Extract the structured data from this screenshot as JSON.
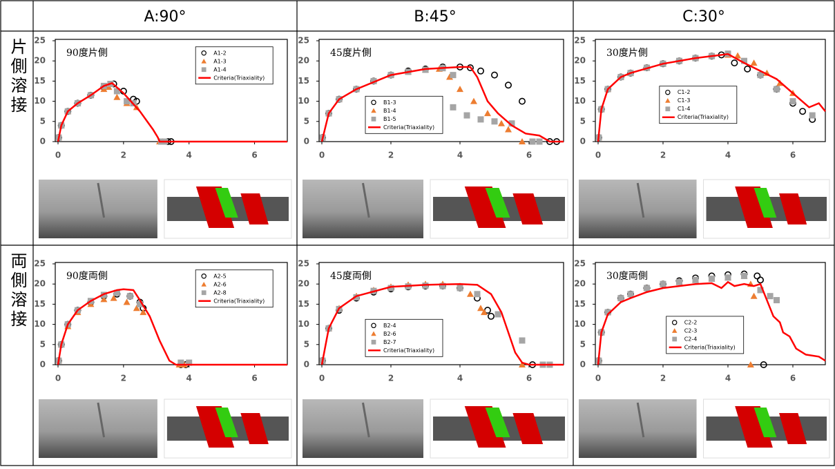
{
  "table": {
    "header": [
      "A:90°",
      "B:45°",
      "C:30°"
    ],
    "row_labels": [
      "片側溶接",
      "両側溶接"
    ]
  },
  "chart_data": [
    {
      "type": "scatter",
      "title": "90度片側",
      "xlim": [
        0,
        7
      ],
      "ylim": [
        0,
        25
      ],
      "xticks": [
        0,
        2,
        4,
        6
      ],
      "yticks": [
        0,
        5,
        10,
        15,
        20,
        25
      ],
      "legend": "upper right",
      "series": [
        {
          "name": "A1-2",
          "color": "#000000",
          "marker": "circle",
          "x": [
            0.02,
            0.1,
            0.3,
            0.6,
            1.0,
            1.4,
            1.7,
            2.0,
            2.3,
            2.4,
            3.35,
            3.45
          ],
          "values": [
            1,
            4,
            7.5,
            9.5,
            11.5,
            13.5,
            14.3,
            12.5,
            10.5,
            10,
            0,
            0
          ]
        },
        {
          "name": "A1-3",
          "color": "#ed7d31",
          "marker": "triangle",
          "x": [
            0.02,
            0.1,
            0.3,
            0.6,
            1.0,
            1.4,
            1.55,
            1.8,
            2.1,
            2.4,
            3.1,
            3.2
          ],
          "values": [
            1,
            4,
            7.5,
            9.5,
            11.5,
            13,
            13.5,
            11,
            9.5,
            8.5,
            0,
            0
          ]
        },
        {
          "name": "A1-4",
          "color": "#a5a5a5",
          "marker": "square",
          "x": [
            0.02,
            0.1,
            0.3,
            0.6,
            1.0,
            1.4,
            1.6,
            1.8,
            2.1,
            2.3,
            3.15,
            3.25
          ],
          "values": [
            1,
            4,
            7.5,
            9.5,
            11.5,
            13.8,
            14.3,
            12.5,
            10,
            9.5,
            0,
            0
          ]
        },
        {
          "name": "Criteria(Triaxiality)",
          "color": "#ff0000",
          "marker": "line",
          "x": [
            0,
            0.1,
            0.3,
            0.6,
            1.0,
            1.4,
            1.65,
            2.0,
            2.5,
            2.9,
            3.05,
            3.1,
            7
          ],
          "values": [
            0,
            4,
            7.5,
            9.5,
            11.5,
            13.8,
            14.5,
            12,
            7.5,
            3,
            1,
            0,
            0
          ]
        }
      ]
    },
    {
      "type": "scatter",
      "title": "45度片側",
      "xlim": [
        0,
        7
      ],
      "ylim": [
        0,
        25
      ],
      "xticks": [
        0,
        2,
        4,
        6
      ],
      "yticks": [
        0,
        5,
        10,
        15,
        20,
        25
      ],
      "legend": "lower left",
      "series": [
        {
          "name": "B1-3",
          "color": "#000000",
          "marker": "circle",
          "x": [
            0.02,
            0.2,
            0.5,
            1,
            1.5,
            2,
            2.5,
            3,
            3.5,
            4,
            4.3,
            4.6,
            5,
            5.4,
            5.8,
            6.6,
            6.8
          ],
          "values": [
            1,
            7,
            10.5,
            13,
            15,
            16.5,
            17.5,
            18,
            18.5,
            18.5,
            18.3,
            17.5,
            16.5,
            14,
            10,
            0,
            0
          ]
        },
        {
          "name": "B1-4",
          "color": "#ed7d31",
          "marker": "triangle",
          "x": [
            0.02,
            0.2,
            0.5,
            1,
            1.5,
            2,
            2.5,
            3,
            3.4,
            3.7,
            4,
            4.4,
            4.8,
            5.2,
            5.4,
            5.8
          ],
          "values": [
            1,
            7,
            10.5,
            13,
            15,
            16.5,
            17.3,
            17.8,
            18,
            16,
            13,
            10,
            7,
            4.5,
            3,
            0
          ]
        },
        {
          "name": "B1-5",
          "color": "#a5a5a5",
          "marker": "square",
          "x": [
            0.02,
            0.2,
            0.5,
            1,
            1.5,
            2,
            2.5,
            3,
            3.5,
            3.8,
            3.8,
            4.2,
            4.6,
            5,
            5.5,
            6.1,
            6.3
          ],
          "values": [
            1,
            7,
            10.5,
            13,
            15,
            16.5,
            17.3,
            17.8,
            18.2,
            16.5,
            8.5,
            6.5,
            5.5,
            5,
            4.5,
            0,
            0
          ]
        },
        {
          "name": "Criteria(Triaxiality)",
          "color": "#ff0000",
          "marker": "line",
          "x": [
            0,
            0.2,
            0.5,
            1,
            2,
            3,
            4,
            4.3,
            4.5,
            4.8,
            5.1,
            5.5,
            5.9,
            6.3,
            6.6,
            7
          ],
          "values": [
            0,
            7,
            10.5,
            13,
            16.5,
            18,
            18.5,
            18.5,
            16,
            10,
            7,
            4,
            2,
            1.5,
            0,
            0
          ]
        }
      ]
    },
    {
      "type": "scatter",
      "title": "30度片側",
      "xlim": [
        0,
        7
      ],
      "ylim": [
        0,
        25
      ],
      "xticks": [
        0,
        2,
        4,
        6
      ],
      "yticks": [
        0,
        5,
        10,
        15,
        20,
        25
      ],
      "legend": "center left",
      "series": [
        {
          "name": "C1-2",
          "color": "#000000",
          "marker": "circle",
          "x": [
            0.02,
            0.1,
            0.3,
            0.7,
            1,
            1.5,
            2,
            2.5,
            3,
            3.5,
            3.8,
            4.2,
            4.6,
            5,
            5.5,
            6,
            6.3,
            6.6
          ],
          "values": [
            1,
            8,
            13,
            16,
            17,
            18.3,
            19.3,
            20,
            20.7,
            21.2,
            21.5,
            19.5,
            18,
            16.5,
            13,
            9.5,
            7.5,
            5.5
          ]
        },
        {
          "name": "C1-3",
          "color": "#ed7d31",
          "marker": "triangle",
          "x": [
            0.02,
            0.1,
            0.3,
            0.7,
            1,
            1.5,
            2,
            2.5,
            3,
            3.5,
            4,
            4.3,
            4.8,
            5.2,
            5.6,
            6
          ],
          "values": [
            1,
            8,
            13,
            16,
            17,
            18.3,
            19.3,
            20,
            20.7,
            21.2,
            21.5,
            21.3,
            19.5,
            17,
            14.5,
            12
          ]
        },
        {
          "name": "C1-4",
          "color": "#a5a5a5",
          "marker": "square",
          "x": [
            0.02,
            0.1,
            0.3,
            0.7,
            1,
            1.5,
            2,
            2.5,
            3,
            3.5,
            4,
            4.5,
            5,
            5.5,
            6,
            6.6
          ],
          "values": [
            1,
            8,
            13,
            16,
            17,
            18.3,
            19.3,
            20,
            20.7,
            21.2,
            21.8,
            20,
            16.5,
            13,
            10,
            6.5
          ]
        },
        {
          "name": "Criteria(Triaxiality)",
          "color": "#ff0000",
          "marker": "line",
          "x": [
            0,
            0.1,
            0.3,
            0.7,
            1,
            2,
            3,
            4,
            4.5,
            5,
            5.5,
            6,
            6.5,
            6.8,
            7
          ],
          "values": [
            0,
            8,
            13,
            16,
            17,
            19.3,
            20.7,
            21.7,
            19.5,
            17.5,
            15.5,
            12,
            8.5,
            9.5,
            7.5
          ]
        }
      ]
    },
    {
      "type": "scatter",
      "title": "90度両側",
      "xlim": [
        0,
        7
      ],
      "ylim": [
        0,
        25
      ],
      "xticks": [
        0,
        2,
        4,
        6
      ],
      "yticks": [
        0,
        5,
        10,
        15,
        20,
        25
      ],
      "legend": "upper right",
      "series": [
        {
          "name": "A2-5",
          "color": "#000000",
          "marker": "circle",
          "x": [
            0.02,
            0.1,
            0.3,
            0.6,
            1,
            1.4,
            1.8,
            2.2,
            2.5,
            2.6,
            3.75,
            3.9
          ],
          "values": [
            1,
            5,
            10,
            13.5,
            15.5,
            17,
            17.5,
            17,
            15.5,
            14,
            0,
            0
          ]
        },
        {
          "name": "A2-6",
          "color": "#ed7d31",
          "marker": "triangle",
          "x": [
            0.02,
            0.1,
            0.3,
            0.6,
            1,
            1.4,
            1.7,
            2.1,
            2.4,
            2.6,
            3.7,
            3.85
          ],
          "values": [
            1,
            5,
            9.5,
            13,
            15,
            16.2,
            16.5,
            15.5,
            14,
            13,
            0,
            0
          ]
        },
        {
          "name": "A2-8",
          "color": "#a5a5a5",
          "marker": "square",
          "x": [
            0.02,
            0.1,
            0.3,
            0.6,
            1,
            1.4,
            1.8,
            2.2,
            2.5,
            3.75,
            4.0
          ],
          "values": [
            1,
            5,
            10,
            13.5,
            15.8,
            17.3,
            17.8,
            17,
            15,
            0.5,
            0.5
          ]
        },
        {
          "name": "Criteria(Triaxiality)",
          "color": "#ff0000",
          "marker": "line",
          "x": [
            0,
            0.1,
            0.3,
            0.6,
            1,
            1.4,
            1.8,
            2.0,
            2.3,
            2.5,
            2.8,
            3.1,
            3.4,
            3.6,
            7
          ],
          "values": [
            0,
            5,
            10,
            13.5,
            15.8,
            17.5,
            18.5,
            18.7,
            18.5,
            16,
            12,
            6,
            1,
            0,
            0
          ]
        }
      ]
    },
    {
      "type": "scatter",
      "title": "45度両側",
      "xlim": [
        0,
        7
      ],
      "ylim": [
        0,
        25
      ],
      "xticks": [
        0,
        2,
        4,
        6
      ],
      "yticks": [
        0,
        5,
        10,
        15,
        20,
        25
      ],
      "legend": "lower left",
      "series": [
        {
          "name": "B2-4",
          "color": "#000000",
          "marker": "circle",
          "x": [
            0.02,
            0.2,
            0.5,
            1,
            1.5,
            2,
            2.5,
            3,
            3.5,
            4,
            4.5,
            4.8,
            4.9,
            6.1
          ],
          "values": [
            1,
            9,
            13.5,
            16.5,
            18,
            18.8,
            19.3,
            19.5,
            19.5,
            19,
            16.5,
            13.5,
            12,
            0
          ]
        },
        {
          "name": "B2-6",
          "color": "#ed7d31",
          "marker": "triangle",
          "x": [
            0.02,
            0.2,
            0.5,
            1,
            1.5,
            2,
            2.5,
            3,
            3.5,
            4,
            4.3,
            4.6,
            4.7,
            5.8
          ],
          "values": [
            1,
            9,
            14,
            17,
            18.5,
            19.3,
            19.8,
            20,
            20,
            19.5,
            17.5,
            14,
            13,
            0
          ]
        },
        {
          "name": "B2-7",
          "color": "#a5a5a5",
          "marker": "square",
          "x": [
            0.02,
            0.2,
            0.5,
            1,
            1.5,
            2,
            2.5,
            3,
            3.5,
            4,
            4.5,
            5.1,
            5.8,
            6.4,
            6.6
          ],
          "values": [
            1,
            9,
            13.8,
            16.7,
            18.3,
            19,
            19.4,
            19.6,
            19.5,
            19,
            17.5,
            12.5,
            6,
            0,
            0
          ]
        },
        {
          "name": "Criteria(Triaxiality)",
          "color": "#ff0000",
          "marker": "line",
          "x": [
            0,
            0.2,
            0.5,
            1,
            2,
            3,
            4,
            4.5,
            4.9,
            5.2,
            5.4,
            5.6,
            5.8,
            6,
            7
          ],
          "values": [
            0,
            9,
            14,
            17,
            19.3,
            19.8,
            20,
            19.8,
            17.5,
            13,
            8,
            3,
            0.5,
            0,
            0
          ]
        }
      ]
    },
    {
      "type": "scatter",
      "title": "30度両側",
      "xlim": [
        0,
        7
      ],
      "ylim": [
        0,
        25
      ],
      "xticks": [
        0,
        2,
        4,
        6
      ],
      "yticks": [
        0,
        5,
        10,
        15,
        20,
        25
      ],
      "legend": "lower center",
      "series": [
        {
          "name": "C2-2",
          "color": "#000000",
          "marker": "circle",
          "x": [
            0.02,
            0.1,
            0.3,
            0.7,
            1,
            1.5,
            2,
            2.5,
            3,
            3.5,
            4,
            4.5,
            4.9,
            5.0,
            5.1
          ],
          "values": [
            1,
            8,
            13,
            16.5,
            17.5,
            19,
            20,
            20.8,
            21.5,
            22,
            22.3,
            22.5,
            22,
            21,
            0
          ]
        },
        {
          "name": "C2-3",
          "color": "#ed7d31",
          "marker": "triangle",
          "x": [
            0.02,
            0.1,
            0.3,
            0.7,
            1,
            1.5,
            2,
            2.5,
            3,
            3.5,
            4,
            4.5,
            4.7,
            4.8,
            4.7
          ],
          "values": [
            1,
            8,
            13,
            16.5,
            17.5,
            19,
            20,
            20.5,
            21,
            21.3,
            21.6,
            22,
            20,
            17,
            0
          ]
        },
        {
          "name": "C2-4",
          "color": "#a5a5a5",
          "marker": "square",
          "x": [
            0.02,
            0.1,
            0.3,
            0.7,
            1,
            1.5,
            2,
            2.5,
            3,
            3.5,
            4,
            4.5,
            5,
            5.3,
            5.5
          ],
          "values": [
            1,
            8,
            13,
            16.5,
            17.5,
            19,
            20,
            20.5,
            21,
            21.3,
            21.6,
            22,
            18.5,
            17,
            16
          ]
        },
        {
          "name": "Criteria(Triaxiality)",
          "color": "#ff0000",
          "marker": "line",
          "x": [
            0,
            0.1,
            0.3,
            0.7,
            1,
            1.5,
            2,
            2.5,
            3,
            3.5,
            3.8,
            4.0,
            4.2,
            4.5,
            4.8,
            5.0,
            5.2,
            5.4,
            5.6,
            5.7,
            5.9,
            6.1,
            6.4,
            6.8,
            7
          ],
          "values": [
            0,
            8,
            12.5,
            15.5,
            16.5,
            18,
            19,
            19.5,
            20,
            20.2,
            19,
            20.5,
            19.5,
            20,
            19.5,
            20,
            16,
            12,
            10.5,
            8,
            7,
            4,
            2.5,
            2,
            1
          ]
        }
      ]
    }
  ]
}
